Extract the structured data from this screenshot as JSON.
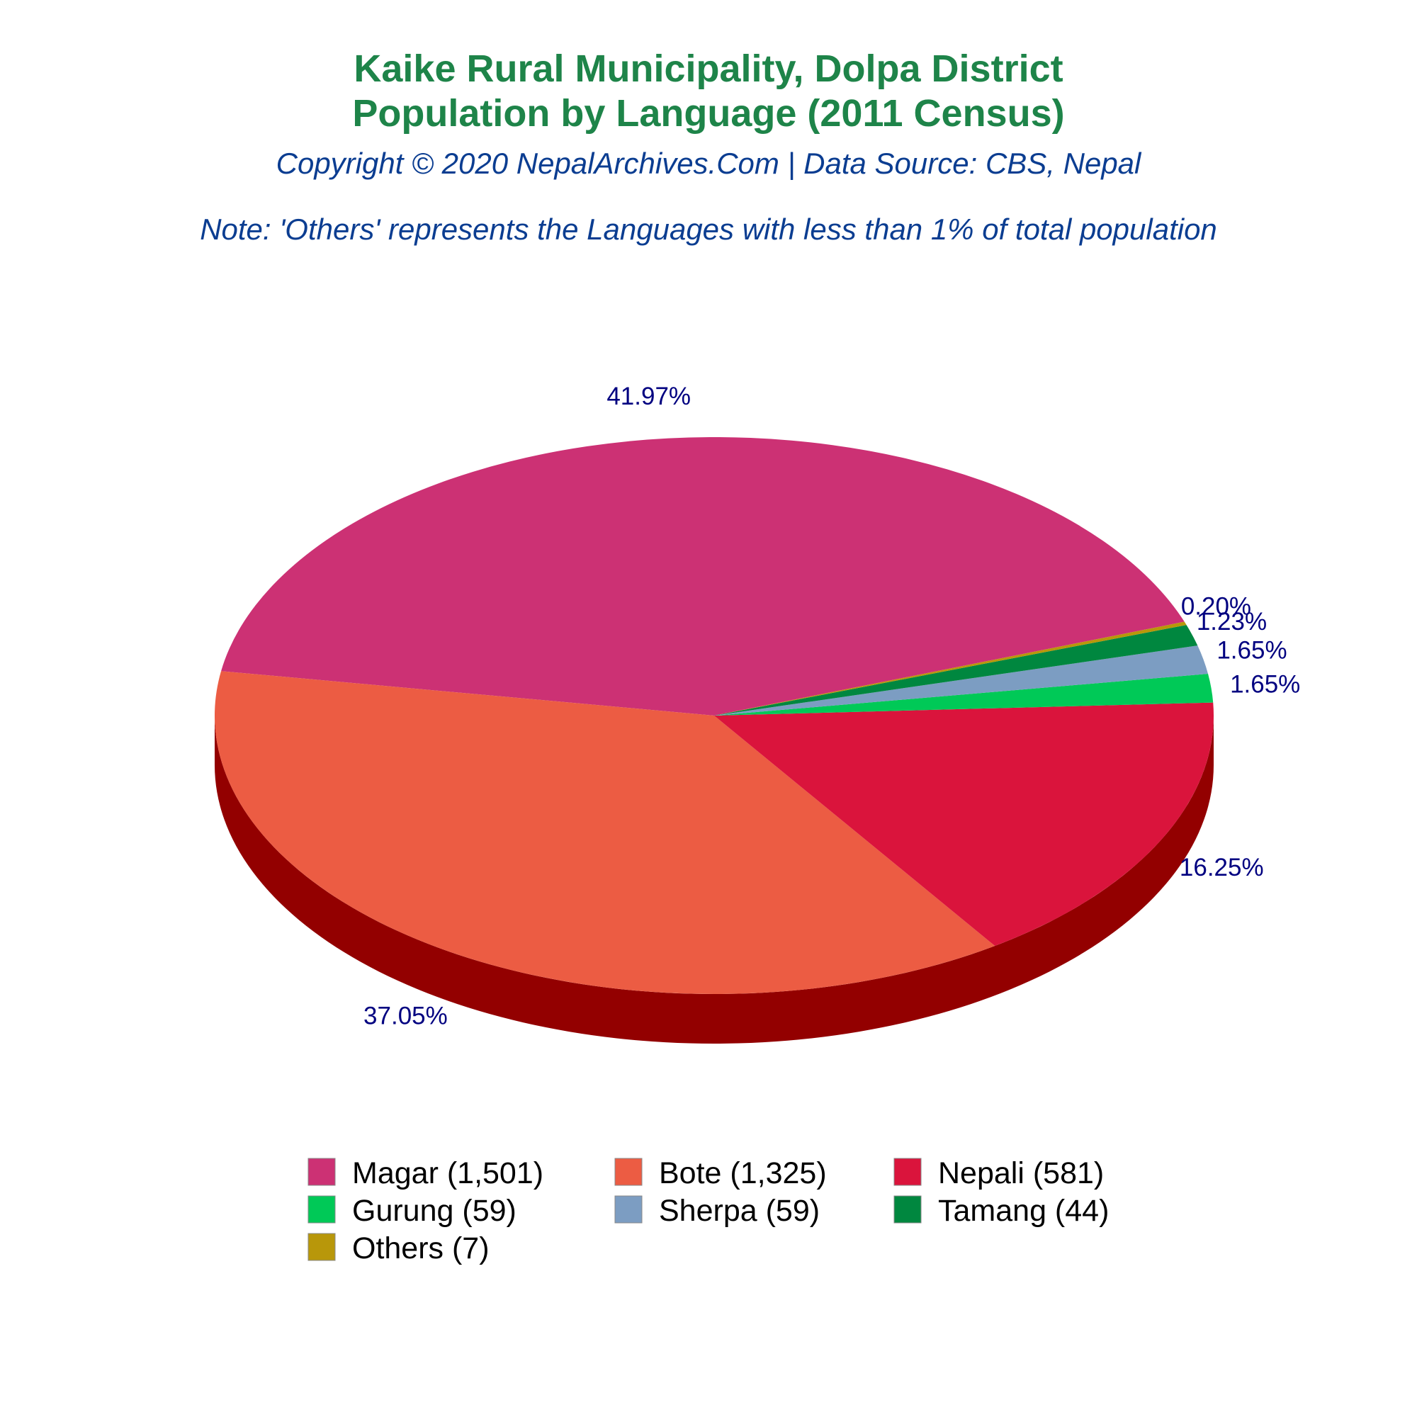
{
  "colors": {
    "title": "#1e8449",
    "subtitle": "#0b3d91",
    "label": "#000080",
    "side": "#930000"
  },
  "chart_data": {
    "type": "pie",
    "title_lines": [
      "Kaike Rural Municipality, Dolpa District",
      "Population by Language (2011 Census)"
    ],
    "copyright": "Copyright © 2020 NepalArchives.Com | Data Source: CBS, Nepal",
    "note": "Note: 'Others' represents the Languages with less than 1% of total population",
    "legend_position": "bottom",
    "slices": [
      {
        "name": "Magar",
        "value": 1501,
        "percent": "41.97%",
        "legend": "Magar (1,501)",
        "color": "#cc3174"
      },
      {
        "name": "Bote",
        "value": 1325,
        "percent": "37.05%",
        "legend": "Bote (1,325)",
        "color": "#ec5c43"
      },
      {
        "name": "Nepali",
        "value": 581,
        "percent": "16.25%",
        "legend": "Nepali (581)",
        "color": "#da143c"
      },
      {
        "name": "Gurung",
        "value": 59,
        "percent": "1.65%",
        "legend": "Gurung (59)",
        "color": "#00c957"
      },
      {
        "name": "Sherpa",
        "value": 59,
        "percent": "1.65%",
        "legend": "Sherpa (59)",
        "color": "#7c9dc2"
      },
      {
        "name": "Tamang",
        "value": 44,
        "percent": "1.23%",
        "legend": "Tamang (44)",
        "color": "#00873f"
      },
      {
        "name": "Others",
        "value": 7,
        "percent": "0.20%",
        "legend": "Others (7)",
        "color": "#b8970a"
      }
    ]
  }
}
